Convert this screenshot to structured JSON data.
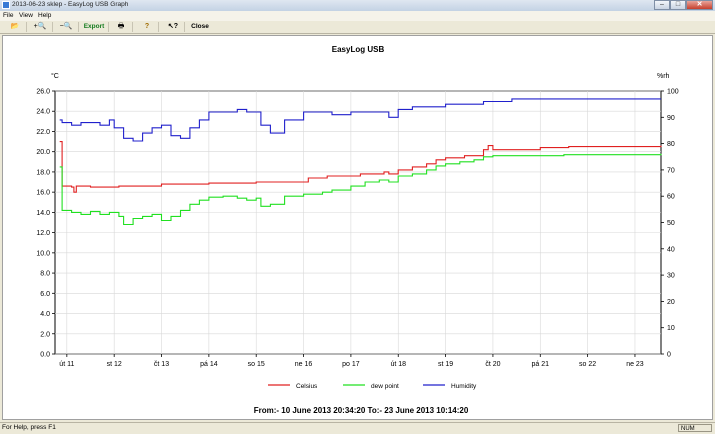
{
  "window": {
    "title": "2013-06-23 sklep - EasyLog USB Graph",
    "min_glyph": "–",
    "max_glyph": "□",
    "close_glyph": "✕"
  },
  "menu": [
    "File",
    "View",
    "Help"
  ],
  "toolbar": {
    "open_glyph": "📂",
    "zoom_in_glyph": "+🔍",
    "zoom_out_glyph": "−🔍",
    "export_label": "Export",
    "print_glyph": "🖶",
    "help_glyph": "?",
    "whats_this_glyph": "↖?",
    "close_label": "Close"
  },
  "status": {
    "help_text": "For Help, press F1",
    "num_indicator": "NUM"
  },
  "colors": {
    "celsius": "#e02020",
    "dew_point": "#20e020",
    "humidity": "#2020cc"
  },
  "chart_data": {
    "type": "line",
    "title": "EasyLog USB",
    "left_axis": {
      "unit_label": "°C",
      "range": [
        0,
        26
      ],
      "ticks": [
        "0.0",
        "2.0",
        "4.0",
        "6.0",
        "8.0",
        "10.0",
        "12.0",
        "14.0",
        "16.0",
        "18.0",
        "20.0",
        "22.0",
        "24.0",
        "26.0"
      ]
    },
    "right_axis": {
      "unit_label": "%rh",
      "range": [
        0,
        100
      ],
      "ticks": [
        "0",
        "10",
        "20",
        "30",
        "40",
        "50",
        "60",
        "70",
        "80",
        "90",
        "100"
      ]
    },
    "x_range": [
      10.75,
      23.55
    ],
    "x_ticks": [
      {
        "label": "út 11",
        "pos": 11
      },
      {
        "label": "st 12",
        "pos": 12
      },
      {
        "label": "čt 13",
        "pos": 13
      },
      {
        "label": "pá 14",
        "pos": 14
      },
      {
        "label": "so 15",
        "pos": 15
      },
      {
        "label": "ne 16",
        "pos": 16
      },
      {
        "label": "po 17",
        "pos": 17
      },
      {
        "label": "út 18",
        "pos": 18
      },
      {
        "label": "st 19",
        "pos": 19
      },
      {
        "label": "čt 20",
        "pos": 20
      },
      {
        "label": "pá 21",
        "pos": 21
      },
      {
        "label": "so 22",
        "pos": 22
      },
      {
        "label": "ne 23",
        "pos": 23
      }
    ],
    "grid": true,
    "legend_position": "bottom",
    "series": [
      {
        "name": "Celsius",
        "axis": "left",
        "x": [
          10.85,
          10.9,
          11.1,
          11.15,
          11.2,
          11.5,
          11.9,
          12.1,
          12.5,
          13.0,
          13.6,
          14.0,
          14.5,
          15.0,
          15.5,
          16.0,
          16.1,
          16.4,
          16.5,
          17.0,
          17.2,
          17.6,
          17.7,
          17.8,
          18.0,
          18.3,
          18.6,
          18.8,
          19.0,
          19.4,
          19.6,
          19.8,
          19.9,
          20.0,
          20.4,
          20.8,
          21.0,
          21.3,
          21.6,
          22.0,
          22.5,
          23.0,
          23.55
        ],
        "y": [
          21.0,
          16.6,
          16.5,
          16.0,
          16.6,
          16.5,
          16.5,
          16.6,
          16.6,
          16.8,
          16.8,
          16.9,
          16.9,
          17.0,
          17.0,
          17.0,
          17.4,
          17.4,
          17.6,
          17.6,
          17.8,
          17.8,
          18.0,
          17.8,
          18.2,
          18.5,
          18.8,
          19.2,
          19.4,
          19.6,
          19.6,
          20.2,
          20.6,
          20.2,
          20.2,
          20.2,
          20.4,
          20.4,
          20.5,
          20.5,
          20.5,
          20.5,
          20.6
        ]
      },
      {
        "name": "dew point",
        "axis": "left",
        "x": [
          10.85,
          10.9,
          11.1,
          11.3,
          11.5,
          11.7,
          11.9,
          12.1,
          12.2,
          12.4,
          12.6,
          12.8,
          12.9,
          13.0,
          13.2,
          13.4,
          13.6,
          13.8,
          14.0,
          14.3,
          14.6,
          14.8,
          15.0,
          15.1,
          15.3,
          15.6,
          16.0,
          16.4,
          16.6,
          16.8,
          17.0,
          17.3,
          17.6,
          17.8,
          18.0,
          18.3,
          18.6,
          18.8,
          19.0,
          19.3,
          19.6,
          19.8,
          20.0,
          20.4,
          21.0,
          21.5,
          22.0,
          22.5,
          23.0,
          23.55
        ],
        "y": [
          18.5,
          14.2,
          14.0,
          13.8,
          14.1,
          13.8,
          14.0,
          13.6,
          12.8,
          13.4,
          13.6,
          13.8,
          13.8,
          13.2,
          13.6,
          14.2,
          14.8,
          15.2,
          15.5,
          15.6,
          15.4,
          15.2,
          15.4,
          14.6,
          14.8,
          15.6,
          15.8,
          16.0,
          16.2,
          16.2,
          16.6,
          17.0,
          17.2,
          17.0,
          17.6,
          17.8,
          18.2,
          18.6,
          18.8,
          19.0,
          19.2,
          19.5,
          19.6,
          19.6,
          19.6,
          19.7,
          19.7,
          19.7,
          19.7,
          19.8
        ]
      },
      {
        "name": "Humidity",
        "axis": "right",
        "x": [
          10.85,
          10.9,
          11.1,
          11.3,
          11.5,
          11.7,
          11.9,
          12.0,
          12.2,
          12.4,
          12.5,
          12.6,
          12.8,
          13.0,
          13.2,
          13.4,
          13.6,
          13.8,
          14.0,
          14.3,
          14.6,
          14.8,
          15.0,
          15.1,
          15.3,
          15.6,
          16.0,
          16.4,
          16.6,
          16.8,
          17.0,
          17.3,
          17.6,
          17.8,
          18.0,
          18.3,
          18.6,
          18.8,
          19.0,
          19.3,
          19.6,
          19.8,
          20.0,
          20.4,
          21.0,
          21.5,
          22.0,
          22.5,
          23.0,
          23.55
        ],
        "y": [
          89,
          88,
          87,
          88,
          88,
          87,
          89,
          86,
          82,
          81,
          81,
          84,
          86,
          87,
          83,
          82,
          86,
          89,
          92,
          92,
          93,
          92,
          92,
          87,
          84,
          89,
          92,
          92,
          91,
          91,
          92,
          92,
          92,
          90,
          93,
          94,
          94,
          94,
          95,
          95,
          95,
          96,
          96,
          97,
          97,
          97,
          97,
          97,
          97,
          97
        ]
      }
    ]
  },
  "range_text": "From:-  10 June 2013 20:34:20     To:-  23 June 2013 10:14:20"
}
